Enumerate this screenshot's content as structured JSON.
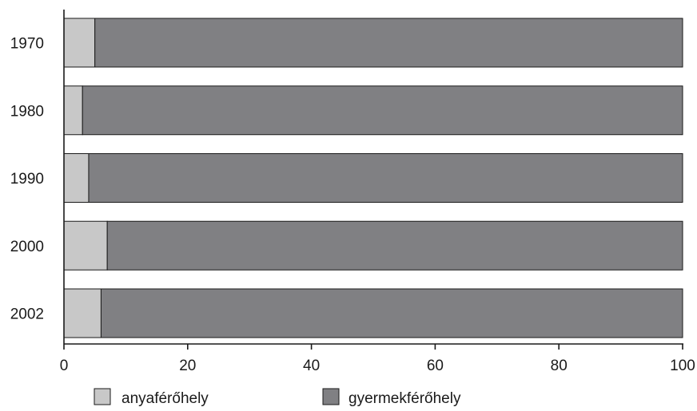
{
  "chart_data": {
    "type": "bar",
    "orientation": "horizontal",
    "stacked": true,
    "categories": [
      "1970",
      "1980",
      "1990",
      "2000",
      "2002"
    ],
    "series": [
      {
        "name": "anyaférőhely",
        "values": [
          5,
          3,
          4,
          7,
          6
        ],
        "color": "#c8c8c8"
      },
      {
        "name": "gyermekférőhely",
        "values": [
          95,
          97,
          96,
          93,
          94
        ],
        "color": "#808083"
      }
    ],
    "x_ticks": [
      "0",
      "20",
      "40",
      "60",
      "80",
      "100"
    ],
    "xlim": [
      0,
      100
    ],
    "grid": false,
    "legend_position": "bottom"
  }
}
